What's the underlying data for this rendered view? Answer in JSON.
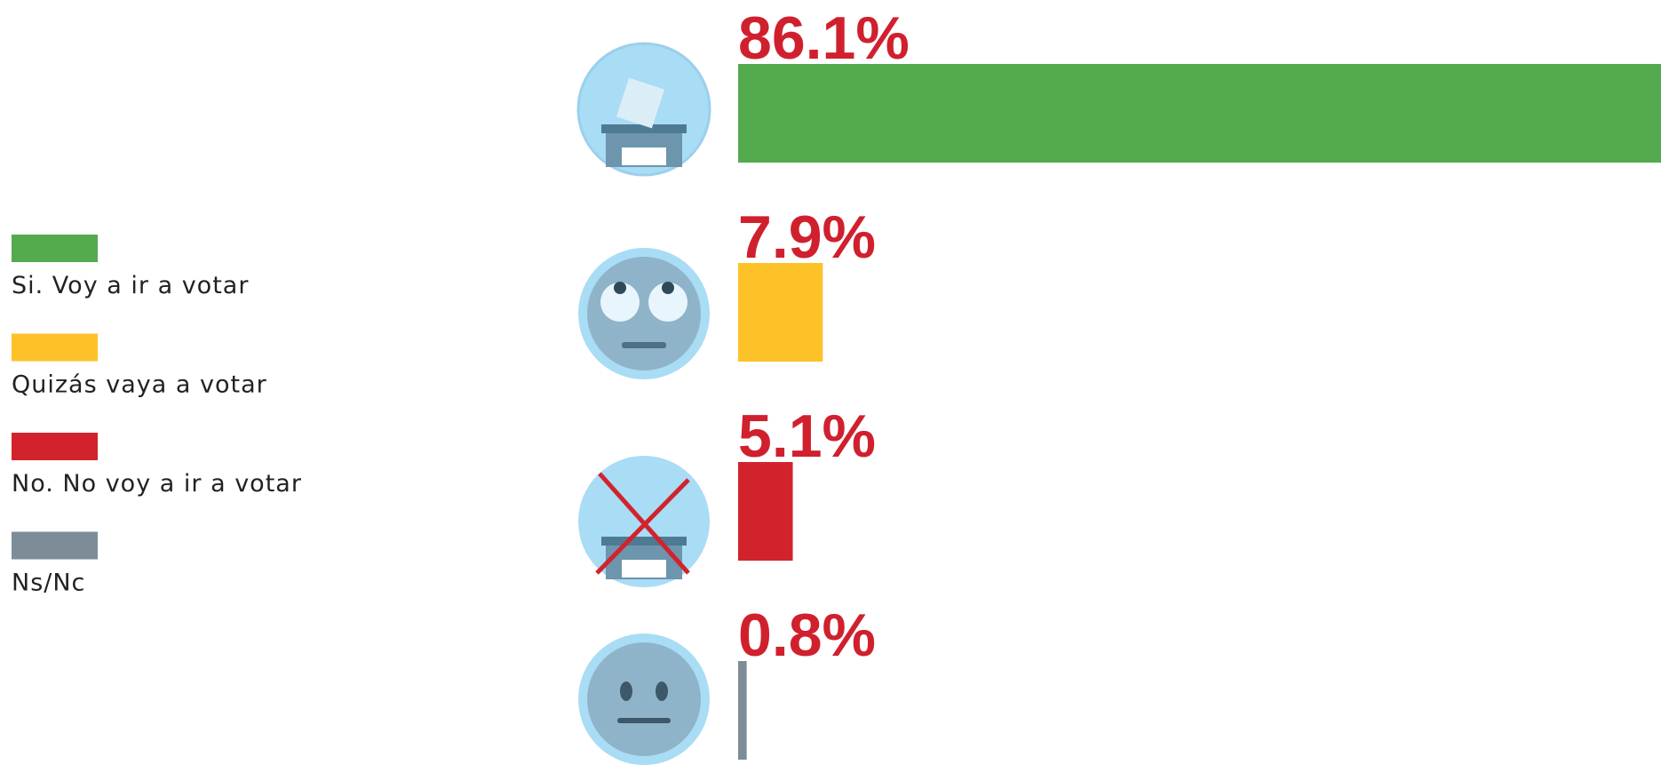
{
  "chart_data": {
    "type": "bar",
    "categories": [
      "Si. Voy a ir a votar",
      "Quizás vaya a votar",
      "No. No voy a ir a votar",
      "Ns/Nc"
    ],
    "values": [
      86.1,
      7.9,
      5.1,
      0.8
    ],
    "value_labels": [
      "86.1%",
      "7.9%",
      "5.1%",
      "0.8%"
    ],
    "colors": [
      "#53aa4f",
      "#fdc228",
      "#d2232c",
      "#7d8d98"
    ],
    "legend": "left"
  }
}
